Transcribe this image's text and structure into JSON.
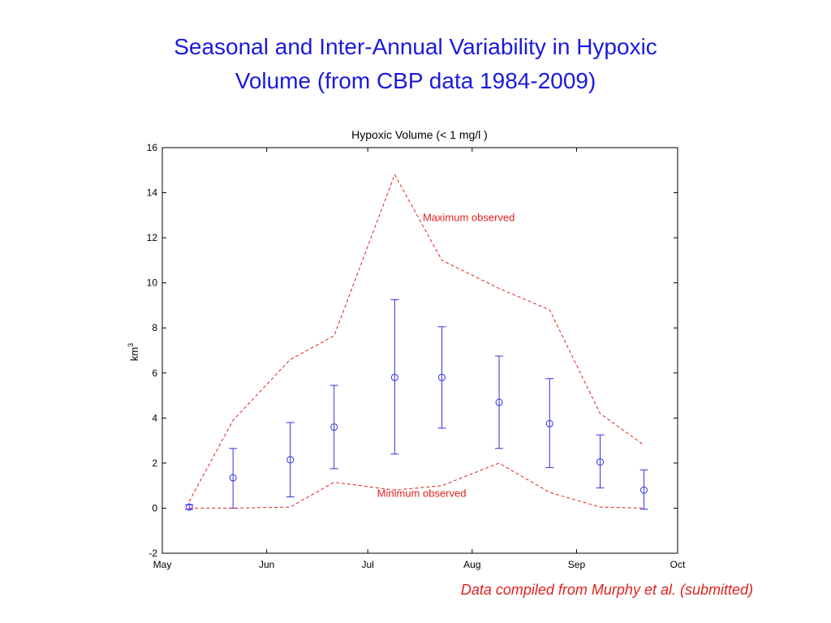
{
  "slide": {
    "title_line1": "Seasonal and Inter-Annual Variability in Hypoxic",
    "title_line2": "Volume (from CBP data 1984-2009)",
    "citation": "Data compiled from Murphy et al. (submitted)"
  },
  "chart_data": {
    "type": "line",
    "title": "Hypoxic Volume (< 1 mg/l )",
    "ylabel": "km",
    "ylabel_superscript": "3",
    "xlabel": "",
    "ylim": [
      -2,
      16
    ],
    "yticks": [
      -2,
      0,
      2,
      4,
      6,
      8,
      10,
      12,
      14,
      16
    ],
    "x_axis": {
      "start": "2000-05-01",
      "end": "2000-10-01",
      "ticks": [
        {
          "date": "2000-05-01",
          "label": "May"
        },
        {
          "date": "2000-06-01",
          "label": "Jun"
        },
        {
          "date": "2000-07-01",
          "label": "Jul"
        },
        {
          "date": "2000-08-01",
          "label": "Aug"
        },
        {
          "date": "2000-09-01",
          "label": "Sep"
        },
        {
          "date": "2000-10-01",
          "label": "Oct"
        }
      ]
    },
    "grid": false,
    "series": [
      {
        "style": "mean-with-errorbars",
        "color": "#3333dd",
        "points": [
          {
            "x": "2000-05-09",
            "y": 0.05,
            "low": -0.05,
            "high": 0.15
          },
          {
            "x": "2000-05-22",
            "y": 1.35,
            "low": 0.0,
            "high": 2.65
          },
          {
            "x": "2000-06-08",
            "y": 2.15,
            "low": 0.5,
            "high": 3.8
          },
          {
            "x": "2000-06-21",
            "y": 3.6,
            "low": 1.75,
            "high": 5.45
          },
          {
            "x": "2000-07-09",
            "y": 5.8,
            "low": 2.4,
            "high": 9.25
          },
          {
            "x": "2000-07-23",
            "y": 5.8,
            "low": 3.55,
            "high": 8.05
          },
          {
            "x": "2000-08-09",
            "y": 4.7,
            "low": 2.65,
            "high": 6.75
          },
          {
            "x": "2000-08-24",
            "y": 3.75,
            "low": 1.8,
            "high": 5.75
          },
          {
            "x": "2000-09-08",
            "y": 2.05,
            "low": 0.9,
            "high": 3.25
          },
          {
            "x": "2000-09-21",
            "y": 0.8,
            "low": -0.05,
            "high": 1.7
          }
        ]
      },
      {
        "name": "Maximum observed",
        "style": "dashed",
        "color": "#e02020",
        "points": [
          {
            "x": "2000-05-09",
            "y": 0.3
          },
          {
            "x": "2000-05-22",
            "y": 3.9
          },
          {
            "x": "2000-06-08",
            "y": 6.6
          },
          {
            "x": "2000-06-21",
            "y": 7.65
          },
          {
            "x": "2000-07-09",
            "y": 14.8
          },
          {
            "x": "2000-07-23",
            "y": 11.0
          },
          {
            "x": "2000-08-09",
            "y": 9.75
          },
          {
            "x": "2000-08-24",
            "y": 8.8
          },
          {
            "x": "2000-09-08",
            "y": 4.2
          },
          {
            "x": "2000-09-21",
            "y": 2.8
          }
        ]
      },
      {
        "name": "Minimum observed",
        "style": "dashed",
        "color": "#e02020",
        "points": [
          {
            "x": "2000-05-09",
            "y": 0.0
          },
          {
            "x": "2000-05-22",
            "y": 0.0
          },
          {
            "x": "2000-06-08",
            "y": 0.05
          },
          {
            "x": "2000-06-21",
            "y": 1.15
          },
          {
            "x": "2000-07-09",
            "y": 0.8
          },
          {
            "x": "2000-07-23",
            "y": 1.0
          },
          {
            "x": "2000-08-09",
            "y": 2.0
          },
          {
            "x": "2000-08-24",
            "y": 0.7
          },
          {
            "x": "2000-09-08",
            "y": 0.05
          },
          {
            "x": "2000-09-21",
            "y": 0.0
          }
        ]
      }
    ],
    "annotations": [
      {
        "text": "Maximum observed",
        "x": "2000-07-31",
        "y": 12.75,
        "color": "#e02020"
      },
      {
        "text": "Minimum observed",
        "x": "2000-07-17",
        "y": 0.5,
        "color": "#e02020"
      }
    ]
  }
}
